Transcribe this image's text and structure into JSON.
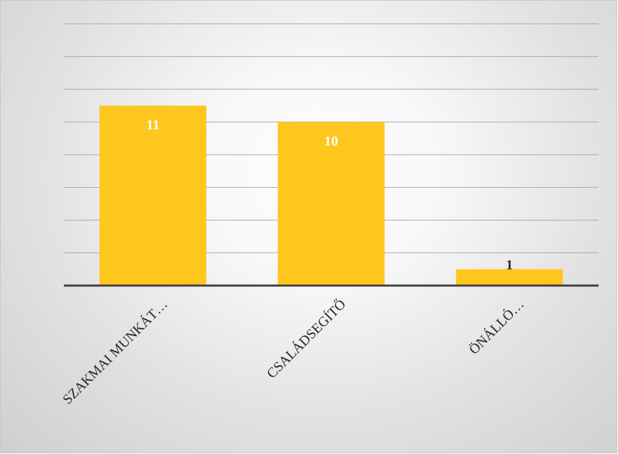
{
  "chart_data": {
    "type": "bar",
    "categories": [
      "SZAKMAI MUNKÁT…",
      "CSALÁDSEGÍTŐ",
      "ÖNÁLLÓ…"
    ],
    "values": [
      11,
      10,
      1
    ],
    "title": "",
    "xlabel": "",
    "ylabel": "",
    "ylim": [
      0,
      16
    ],
    "grid": true,
    "legend": "none",
    "data_labels": true,
    "bar_color": "#FFC61E",
    "label_colors": [
      "#ffffff",
      "#ffffff",
      "#262626"
    ]
  }
}
